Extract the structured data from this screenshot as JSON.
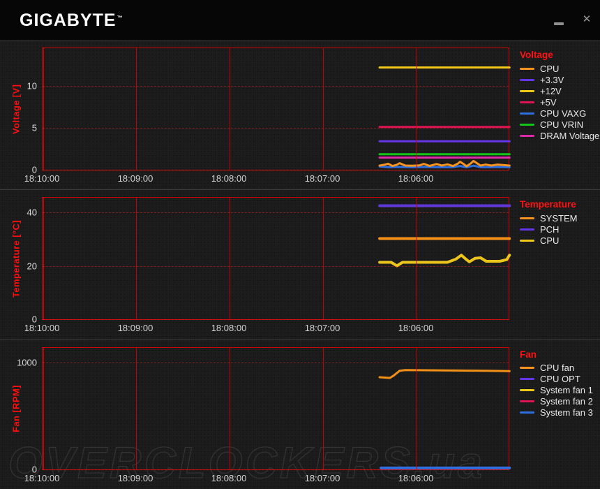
{
  "header": {
    "logo": "GIGABYTE",
    "trademark": "™",
    "close_glyph": "✕"
  },
  "watermark_text": "OVERCLOCKERS.ua",
  "colors": {
    "axis_red": "#ff0f0f",
    "border_red": "#cf0505",
    "orange": "#f79420",
    "purple": "#6535e8",
    "yellow": "#f0c818",
    "crimson": "#e01355",
    "blue": "#2e6fe0",
    "green": "#12c418",
    "magenta": "#dc2aa8"
  },
  "charts": [
    {
      "id": "voltage",
      "type": "line",
      "ylabel": "Voltage [V]",
      "legend_title": "Voltage",
      "ymax": 14.5,
      "yticks": [
        0,
        5,
        10
      ],
      "xticklabels": [
        "18:10:00",
        "18:09:00",
        "18:08:00",
        "18:07:00",
        "18:06:00"
      ],
      "legend": [
        {
          "label": "CPU",
          "color": "#f79420"
        },
        {
          "label": "+3.3V",
          "color": "#6535e8"
        },
        {
          "label": "+12V",
          "color": "#f0c818"
        },
        {
          "label": "+5V",
          "color": "#e01355"
        },
        {
          "label": "CPU VAXG",
          "color": "#2e6fe0"
        },
        {
          "label": "CPU VRIN",
          "color": "#12c418"
        },
        {
          "label": "DRAM Voltage",
          "color": "#dc2aa8"
        }
      ],
      "series": [
        {
          "name": "+12V",
          "color": "#f2c81a",
          "width": 3,
          "points": [
            [
              0.721,
              12.2
            ],
            [
              0.999,
              12.2
            ]
          ]
        },
        {
          "name": "+5V",
          "color": "#e01355",
          "width": 3,
          "points": [
            [
              0.721,
              5.1
            ],
            [
              0.999,
              5.1
            ]
          ]
        },
        {
          "name": "+3.3V",
          "color": "#6535e8",
          "width": 3,
          "points": [
            [
              0.721,
              3.4
            ],
            [
              0.999,
              3.4
            ]
          ]
        },
        {
          "name": "CPU VRIN",
          "color": "#12c418",
          "width": 3,
          "points": [
            [
              0.721,
              1.85
            ],
            [
              0.999,
              1.85
            ]
          ]
        },
        {
          "name": "DRAM Voltage",
          "color": "#dc2aa8",
          "width": 3,
          "points": [
            [
              0.721,
              1.45
            ],
            [
              0.999,
              1.45
            ]
          ]
        },
        {
          "name": "CPU VAXG",
          "color": "#2e6fe0",
          "width": 3,
          "points": [
            [
              0.721,
              0.4
            ],
            [
              0.74,
              0.3
            ],
            [
              0.76,
              0.34
            ],
            [
              0.79,
              0.3
            ],
            [
              0.82,
              0.33
            ],
            [
              0.85,
              0.3
            ],
            [
              0.878,
              0.32
            ],
            [
              0.893,
              0.45
            ],
            [
              0.907,
              0.3
            ],
            [
              0.922,
              0.48
            ],
            [
              0.937,
              0.32
            ],
            [
              0.955,
              0.3
            ],
            [
              0.975,
              0.33
            ],
            [
              0.999,
              0.3
            ]
          ]
        },
        {
          "name": "CPU",
          "color": "#f79420",
          "width": 3,
          "points": [
            [
              0.721,
              0.5
            ],
            [
              0.733,
              0.62
            ],
            [
              0.739,
              0.72
            ],
            [
              0.749,
              0.45
            ],
            [
              0.758,
              0.6
            ],
            [
              0.764,
              0.78
            ],
            [
              0.776,
              0.5
            ],
            [
              0.79,
              0.48
            ],
            [
              0.806,
              0.52
            ],
            [
              0.816,
              0.7
            ],
            [
              0.828,
              0.46
            ],
            [
              0.843,
              0.68
            ],
            [
              0.854,
              0.5
            ],
            [
              0.866,
              0.64
            ],
            [
              0.878,
              0.45
            ],
            [
              0.888,
              0.72
            ],
            [
              0.893,
              0.95
            ],
            [
              0.9,
              0.72
            ],
            [
              0.907,
              0.42
            ],
            [
              0.916,
              0.75
            ],
            [
              0.922,
              1.05
            ],
            [
              0.93,
              0.75
            ],
            [
              0.937,
              0.5
            ],
            [
              0.948,
              0.62
            ],
            [
              0.96,
              0.5
            ],
            [
              0.973,
              0.62
            ],
            [
              0.985,
              0.56
            ],
            [
              0.999,
              0.5
            ]
          ]
        }
      ]
    },
    {
      "id": "temperature",
      "type": "line",
      "ylabel": "Temperature [°C]",
      "legend_title": "Temperature",
      "ymax": 45.5,
      "yticks": [
        0,
        20,
        40
      ],
      "xticklabels": [
        "18:10:00",
        "18:09:00",
        "18:08:00",
        "18:07:00",
        "18:06:00"
      ],
      "legend": [
        {
          "label": "SYSTEM",
          "color": "#f79420"
        },
        {
          "label": "PCH",
          "color": "#6535e8"
        },
        {
          "label": "CPU",
          "color": "#f0c818"
        }
      ],
      "series": [
        {
          "name": "PCH",
          "color": "#6038d8",
          "width": 4,
          "points": [
            [
              0.721,
              42.5
            ],
            [
              0.999,
              42.5
            ]
          ]
        },
        {
          "name": "SYSTEM",
          "color": "#f29018",
          "width": 4,
          "points": [
            [
              0.721,
              30.2
            ],
            [
              0.999,
              30.2
            ]
          ]
        },
        {
          "name": "CPU",
          "color": "#ecc51c",
          "width": 4,
          "points": [
            [
              0.721,
              21.3
            ],
            [
              0.746,
              21.3
            ],
            [
              0.758,
              20.0
            ],
            [
              0.77,
              21.3
            ],
            [
              0.866,
              21.3
            ],
            [
              0.884,
              22.5
            ],
            [
              0.896,
              24.0
            ],
            [
              0.907,
              22.3
            ],
            [
              0.913,
              21.5
            ],
            [
              0.925,
              22.8
            ],
            [
              0.937,
              23.0
            ],
            [
              0.949,
              21.7
            ],
            [
              0.978,
              21.7
            ],
            [
              0.993,
              22.3
            ],
            [
              0.999,
              24.0
            ]
          ]
        }
      ]
    },
    {
      "id": "fan",
      "type": "line",
      "ylabel": "Fan [RPM]",
      "legend_title": "Fan",
      "ymax": 1140,
      "yticks": [
        0,
        1000
      ],
      "xticklabels": [
        "18:10:00",
        "18:09:00",
        "18:08:00",
        "18:07:00",
        "18:06:00"
      ],
      "legend": [
        {
          "label": "CPU fan",
          "color": "#f79420"
        },
        {
          "label": "CPU OPT",
          "color": "#6535e8"
        },
        {
          "label": "System fan 1",
          "color": "#f0c818"
        },
        {
          "label": "System fan 2",
          "color": "#e01355"
        },
        {
          "label": "System fan 3",
          "color": "#2e6fe0"
        }
      ],
      "series": [
        {
          "name": "System fan 3",
          "color": "#2e6fe0",
          "width": 4,
          "points": [
            [
              0.724,
              14
            ],
            [
              0.999,
              14
            ]
          ]
        },
        {
          "name": "CPU fan",
          "color": "#f29018",
          "width": 3,
          "points": [
            [
              0.721,
              865
            ],
            [
              0.743,
              858
            ],
            [
              0.751,
              880
            ],
            [
              0.764,
              926
            ],
            [
              0.776,
              932
            ],
            [
              0.88,
              928
            ],
            [
              0.95,
              926
            ],
            [
              0.999,
              922
            ]
          ]
        }
      ]
    }
  ]
}
